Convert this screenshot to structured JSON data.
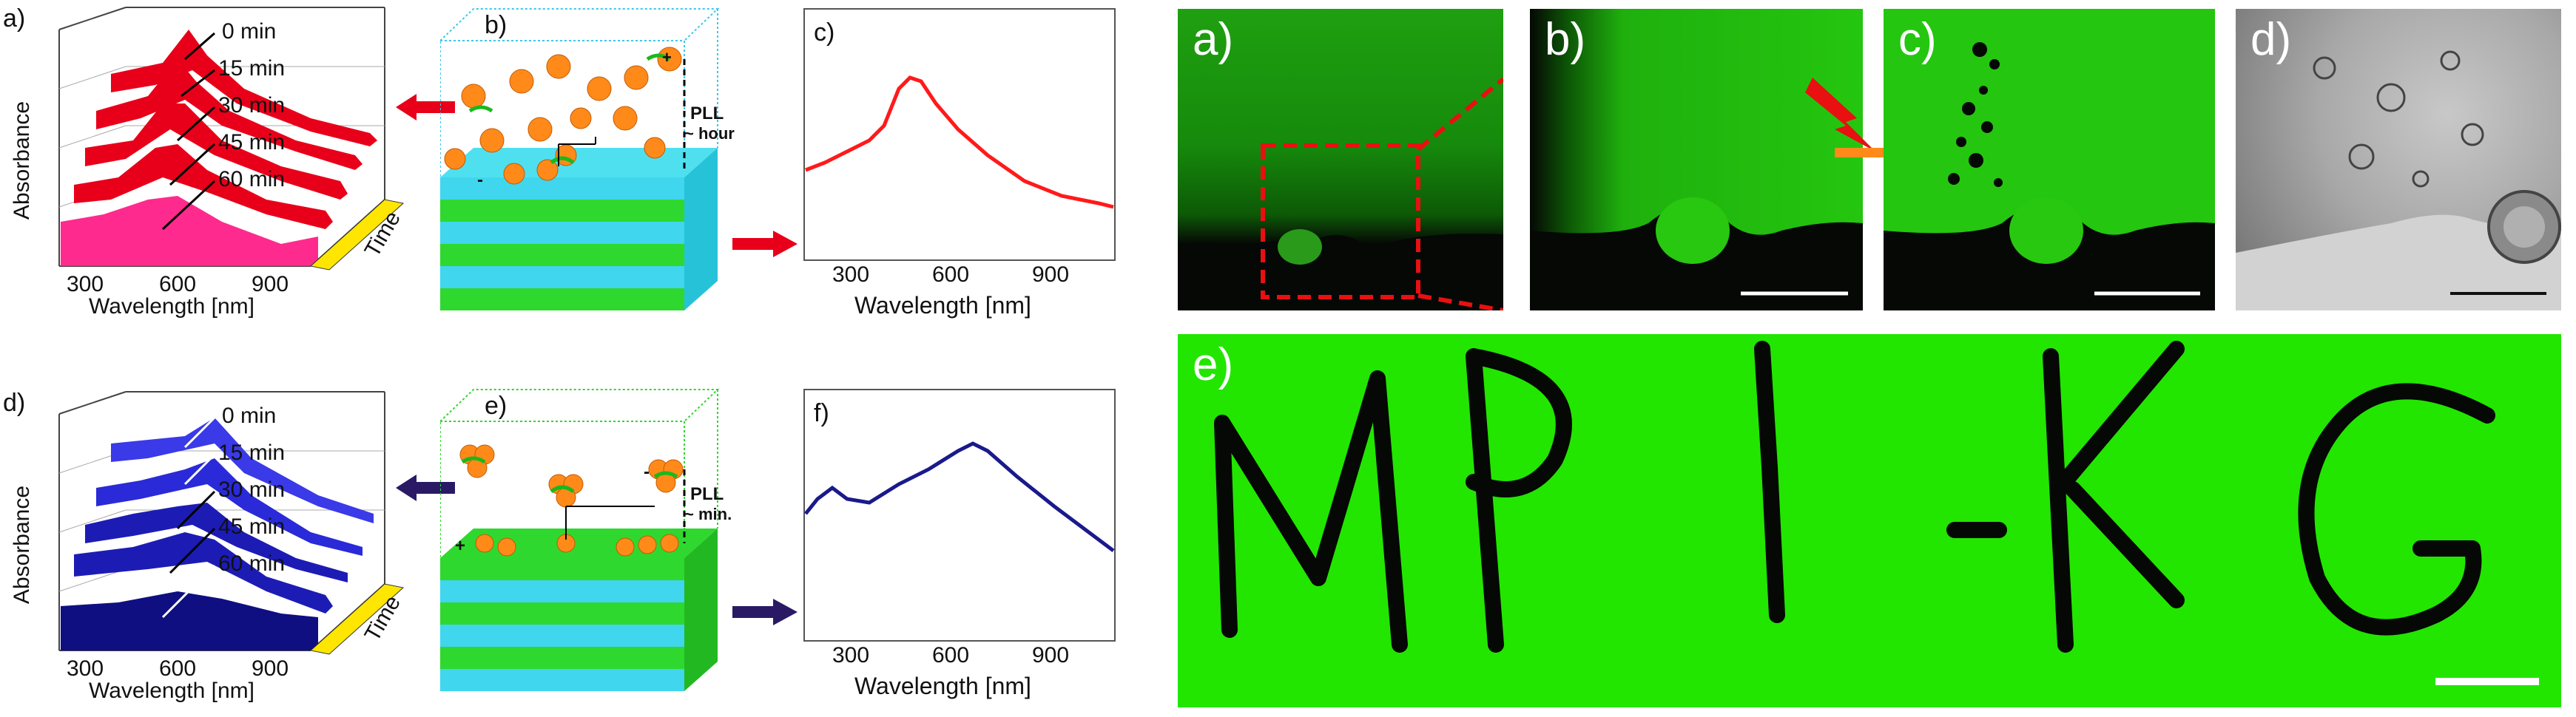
{
  "left_figure": {
    "row_top": {
      "panel_a": {
        "label": "a)",
        "ylabel": "Absorbance",
        "xlabel": "Wavelength [nm]",
        "zlabel": "Time",
        "xticks": [
          "300",
          "600",
          "900"
        ],
        "times": [
          "0 min",
          "15 min",
          "30 min",
          "45 min",
          "60 min"
        ],
        "color": "#e8001a"
      },
      "panel_b": {
        "label": "b)",
        "annotation": [
          "PLL",
          "~ hour"
        ],
        "charges": [
          "-",
          "+"
        ]
      },
      "panel_c": {
        "label": "c)",
        "xlabel": "Wavelength [nm]",
        "xticks": [
          "300",
          "600",
          "900"
        ],
        "color": "#ff1a1a"
      }
    },
    "row_bottom": {
      "panel_d": {
        "label": "d)",
        "ylabel": "Absorbance",
        "xlabel": "Wavelength [nm]",
        "zlabel": "Time",
        "xticks": [
          "300",
          "600",
          "900"
        ],
        "times": [
          "0 min",
          "15 min",
          "30 min",
          "45 min",
          "60 min"
        ],
        "color": "#1a1aa6"
      },
      "panel_e": {
        "label": "e)",
        "annotation": [
          "PLL",
          "~ min."
        ],
        "charges": [
          "+",
          "-"
        ]
      },
      "panel_f": {
        "label": "f)",
        "xlabel": "Wavelength [nm]",
        "xticks": [
          "300",
          "600",
          "900"
        ],
        "color": "#1a1a8c"
      }
    }
  },
  "right_figure": {
    "panel_a": {
      "label": "a)"
    },
    "panel_b": {
      "label": "b)"
    },
    "panel_c": {
      "label": "c)"
    },
    "panel_d": {
      "label": "d)"
    },
    "panel_e": {
      "label": "e)",
      "text": "MPI-KG"
    }
  },
  "colors": {
    "fluorescence": "#22e600",
    "dark": "#050805",
    "orange_particle": "#ff8a1a",
    "cyan_layer": "#3fd6ee",
    "green_layer": "#2fd82f"
  }
}
